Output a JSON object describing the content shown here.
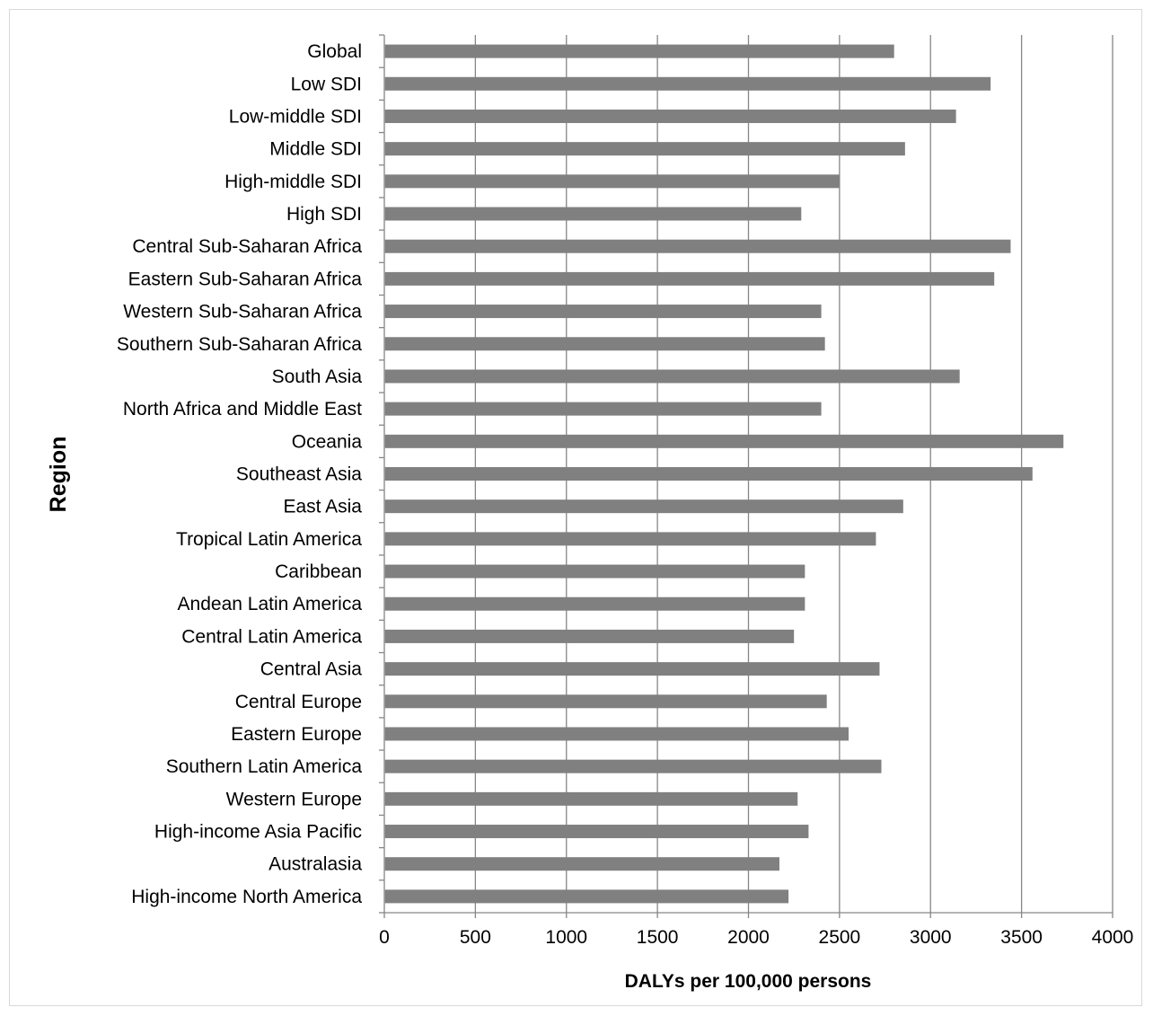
{
  "chart_data": {
    "type": "bar",
    "orientation": "horizontal",
    "title": "",
    "xlabel": "DALYs per 100,000 persons",
    "ylabel": "Region",
    "xlim": [
      0,
      4000
    ],
    "x_ticks": [
      "0",
      "500",
      "1000",
      "1500",
      "2000",
      "2500",
      "3000",
      "3500",
      "4000"
    ],
    "grid": "vertical major gridlines",
    "legend": "none",
    "categories": [
      "Global",
      "Low SDI",
      "Low-middle SDI",
      "Middle SDI",
      "High-middle SDI",
      "High SDI",
      "Central Sub-Saharan Africa",
      "Eastern Sub-Saharan Africa",
      "Western Sub-Saharan Africa",
      "Southern Sub-Saharan Africa",
      "South Asia",
      "North Africa and Middle East",
      "Oceania",
      "Southeast Asia",
      "East Asia",
      "Tropical Latin America",
      "Caribbean",
      "Andean Latin America",
      "Central Latin America",
      "Central Asia",
      "Central Europe",
      "Eastern Europe",
      "Southern Latin America",
      "Western Europe",
      "High-income Asia Pacific",
      "Australasia",
      "High-income North America"
    ],
    "values": [
      2800,
      3330,
      3140,
      2860,
      2500,
      2290,
      3440,
      3350,
      2400,
      2420,
      3160,
      2400,
      3730,
      3560,
      2850,
      2700,
      2310,
      2310,
      2250,
      2720,
      2430,
      2550,
      2730,
      2270,
      2330,
      2170,
      2220
    ],
    "colors": {
      "bar": "#808080",
      "grid": "#868686",
      "axis": "#868686"
    }
  }
}
